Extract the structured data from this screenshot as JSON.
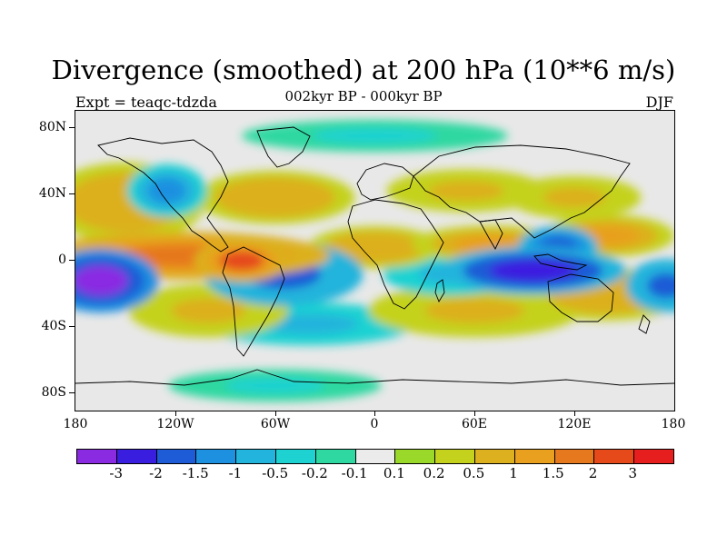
{
  "title": "Divergence (smoothed) at 200 hPa (10**6 m/s)",
  "subtitle_left": "Expt = teaqc-tdzda",
  "subtitle_center": "002kyr BP - 000kyr BP",
  "subtitle_right": "DJF",
  "lat_labels": [
    "80N",
    "40N",
    "0",
    "40S",
    "80S"
  ],
  "lon_labels": [
    "180",
    "120W",
    "60W",
    "0",
    "60E",
    "120E",
    "180"
  ],
  "colorbar": {
    "colors": [
      "#8a2be2",
      "#3a1ee0",
      "#1e5bd6",
      "#1e90e0",
      "#22b4dc",
      "#1fd2d2",
      "#2ed8a0",
      "#ebebeb",
      "#9ad82a",
      "#c4d21e",
      "#dcb01e",
      "#e8a01e",
      "#e6781e",
      "#e64a1a",
      "#e61e1e"
    ],
    "labels": [
      "-3",
      "-2",
      "-1.5",
      "-1",
      "-0.5",
      "-0.2",
      "-0.1",
      "0.1",
      "0.2",
      "0.5",
      "1",
      "1.5",
      "2",
      "3"
    ]
  },
  "chart_data": {
    "type": "heatmap",
    "title": "Divergence (smoothed) at 200 hPa (10**6 m/s)",
    "subtitle": "002kyr BP - 000kyr BP",
    "season": "DJF",
    "experiment": "teaqc-tdzda",
    "x_range": [
      -180,
      180
    ],
    "y_range": [
      -90,
      90
    ],
    "xticks": [
      -180,
      -120,
      -60,
      0,
      60,
      120,
      180
    ],
    "yticks": [
      80,
      40,
      0,
      -40,
      -80
    ],
    "levels": [
      -3,
      -2,
      -1.5,
      -1,
      -0.5,
      -0.2,
      -0.1,
      0.1,
      0.2,
      0.5,
      1,
      1.5,
      2,
      3
    ],
    "features": [
      {
        "lon": -115,
        "lat": 3,
        "value": 2.0,
        "w": 55,
        "h": 9
      },
      {
        "lon": -80,
        "lat": 0,
        "value": 2.5,
        "w": 18,
        "h": 8
      },
      {
        "lon": -165,
        "lat": -12,
        "value": -3.2,
        "w": 22,
        "h": 12
      },
      {
        "lon": 95,
        "lat": -6,
        "value": -2.6,
        "w": 35,
        "h": 9
      },
      {
        "lon": 110,
        "lat": 8,
        "value": -1.8,
        "w": 15,
        "h": 8
      },
      {
        "lon": -55,
        "lat": -8,
        "value": -1.6,
        "w": 30,
        "h": 12
      },
      {
        "lon": 45,
        "lat": -8,
        "value": -0.8,
        "w": 25,
        "h": 8
      },
      {
        "lon": 0,
        "lat": 8,
        "value": 1.0,
        "w": 25,
        "h": 8
      },
      {
        "lon": 70,
        "lat": 10,
        "value": 1.2,
        "w": 30,
        "h": 7
      },
      {
        "lon": 140,
        "lat": 15,
        "value": 1.2,
        "w": 25,
        "h": 8
      },
      {
        "lon": 140,
        "lat": -20,
        "value": 1.0,
        "w": 30,
        "h": 10
      },
      {
        "lon": 175,
        "lat": -15,
        "value": -1.5,
        "w": 15,
        "h": 10
      },
      {
        "lon": -150,
        "lat": 35,
        "value": 0.9,
        "w": 30,
        "h": 15
      },
      {
        "lon": -125,
        "lat": 42,
        "value": -1.0,
        "w": 15,
        "h": 10
      },
      {
        "lon": -60,
        "lat": 38,
        "value": 0.9,
        "w": 30,
        "h": 10
      },
      {
        "lon": 55,
        "lat": 42,
        "value": 0.8,
        "w": 30,
        "h": 8
      },
      {
        "lon": 120,
        "lat": 38,
        "value": 0.8,
        "w": 25,
        "h": 8
      },
      {
        "lon": -100,
        "lat": -30,
        "value": 0.8,
        "w": 30,
        "h": 10
      },
      {
        "lon": 60,
        "lat": -30,
        "value": 0.7,
        "w": 40,
        "h": 10
      },
      {
        "lon": -40,
        "lat": -38,
        "value": -0.6,
        "w": 40,
        "h": 8
      },
      {
        "lon": 0,
        "lat": 75,
        "value": -0.3,
        "w": 50,
        "h": 6
      },
      {
        "lon": -60,
        "lat": -75,
        "value": -0.3,
        "w": 40,
        "h": 6
      }
    ]
  }
}
